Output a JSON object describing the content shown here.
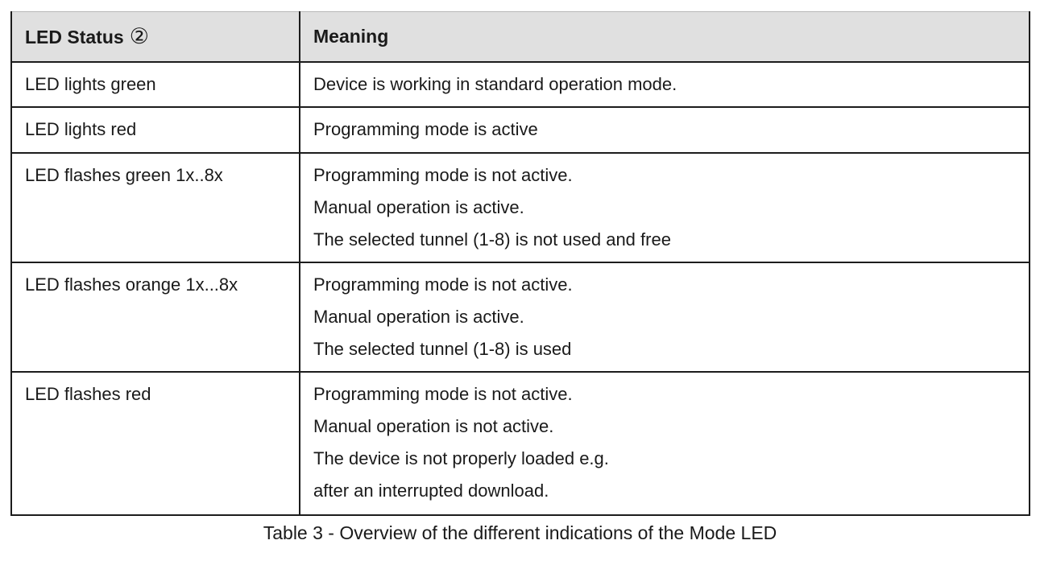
{
  "table": {
    "header": {
      "status_label": "LED Status",
      "status_marker": "②",
      "meaning_label": "Meaning"
    },
    "rows": [
      {
        "status": "LED lights green",
        "meaning": [
          "Device is working in standard operation mode."
        ]
      },
      {
        "status": "LED lights red",
        "meaning": [
          "Programming mode is active"
        ]
      },
      {
        "status": "LED flashes green 1x..8x",
        "meaning": [
          "Programming mode is not active.",
          "Manual operation is active.",
          "The selected tunnel (1-8) is not used and free"
        ]
      },
      {
        "status": "LED flashes orange 1x...8x",
        "meaning": [
          "Programming mode is not active.",
          "Manual operation is active.",
          "The selected tunnel (1-8) is used"
        ]
      },
      {
        "status": "LED flashes red",
        "meaning": [
          "Programming mode is not active.",
          "Manual operation is not active.",
          "The device is not properly loaded e.g.",
          "after an interrupted download."
        ]
      }
    ],
    "caption": "Table 3 - Overview of the different indications of the Mode LED"
  },
  "colors": {
    "page_bg": "#ffffff",
    "header_bg": "#e0e0e0",
    "border": "#1c1c1c",
    "text": "#1a1a1a"
  }
}
